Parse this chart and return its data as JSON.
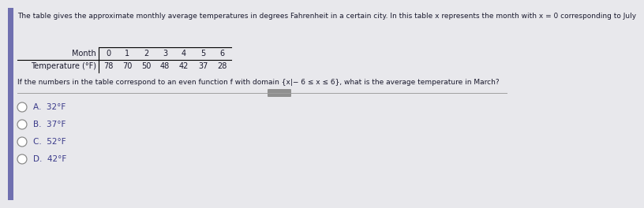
{
  "title": "The table gives the approximate monthly average temperatures in degrees Fahrenheit in a certain city. In this table x represents the month with x = 0 corresponding to July",
  "table_headers": [
    "Month",
    "0",
    "1",
    "2",
    "3",
    "4",
    "5",
    "6"
  ],
  "table_row_label": "Temperature (°F)",
  "table_values": [
    "78",
    "70",
    "50",
    "48",
    "42",
    "37",
    "28"
  ],
  "question": "If the numbers in the table correspond to an even function f with domain {x|− 6 ≤ x ≤ 6}, what is the average temperature in March?",
  "choices": [
    "A.  32°F",
    "B.  37°F",
    "C.  52°F",
    "D.  42°F"
  ],
  "bg_color": "#e8e8ec",
  "text_color": "#1a1a2e",
  "choice_color": "#3a3a8a",
  "title_fontsize": 6.5,
  "question_fontsize": 6.5,
  "choice_fontsize": 7.5,
  "table_fontsize": 7.0,
  "left_bar_color": "#7070b0",
  "divider_color": "#a0a0a0",
  "pill_color": "#909090"
}
